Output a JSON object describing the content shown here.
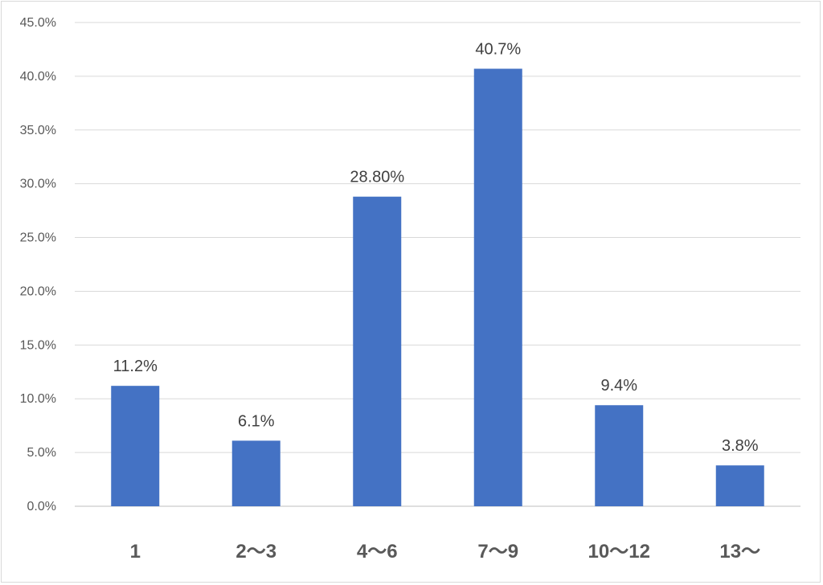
{
  "chart_data": {
    "type": "bar",
    "categories": [
      "1",
      "2〜3",
      "4〜6",
      "7〜9",
      "10〜12",
      "13〜"
    ],
    "values": [
      11.2,
      6.1,
      28.8,
      40.7,
      9.4,
      3.8
    ],
    "data_labels": [
      "11.2%",
      "6.1%",
      "28.80%",
      "40.7%",
      "9.4%",
      "3.8%"
    ],
    "title": "",
    "xlabel": "",
    "ylabel": "",
    "ylim": [
      0,
      45
    ],
    "yticks": [
      "0.0%",
      "5.0%",
      "10.0%",
      "15.0%",
      "20.0%",
      "25.0%",
      "30.0%",
      "35.0%",
      "40.0%",
      "45.0%"
    ],
    "grid": true,
    "legend": "none",
    "bar_color": "#4472c4",
    "first_category_color": "#000000",
    "category_color": "#595959"
  }
}
